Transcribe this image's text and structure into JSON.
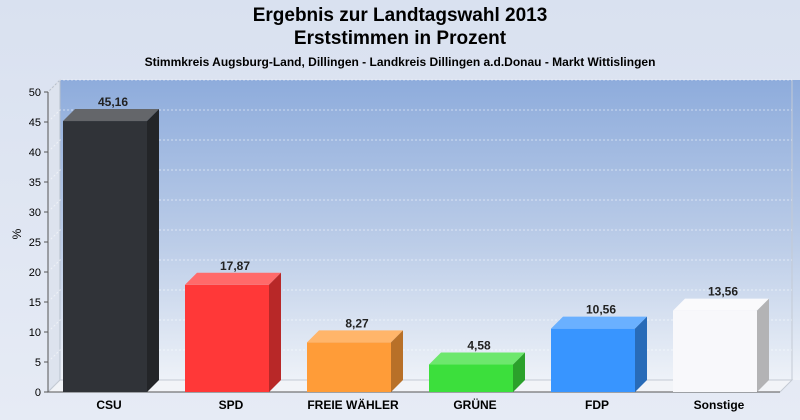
{
  "header": {
    "title_line1": "Ergebnis zur Landtagswahl 2013",
    "title_line2": "Erststimmen in Prozent",
    "subtitle": "Stimmkreis Augsburg-Land, Dillingen - Landkreis Dillingen a.d.Donau - Markt Wittislingen"
  },
  "chart_data": {
    "type": "bar",
    "title": "Ergebnis zur Landtagswahl 2013",
    "subtitle": "Erststimmen in Prozent",
    "xlabel": "",
    "ylabel": "%",
    "ylim": [
      0,
      50
    ],
    "yticks": [
      0,
      5,
      10,
      15,
      20,
      25,
      30,
      35,
      40,
      45,
      50
    ],
    "grid": true,
    "legend": "none",
    "categories": [
      "CSU",
      "SPD",
      "FREIE WÄHLER",
      "GRÜNE",
      "FDP",
      "Sonstige"
    ],
    "values": [
      45.16,
      17.87,
      8.27,
      4.58,
      10.56,
      13.56
    ],
    "value_labels": [
      "45,16",
      "17,87",
      "8,27",
      "4,58",
      "10,56",
      "13,56"
    ],
    "colors": [
      "#303338",
      "#ff3838",
      "#ff9c38",
      "#3cdf3c",
      "#3895ff",
      "#f8f8fb"
    ]
  }
}
